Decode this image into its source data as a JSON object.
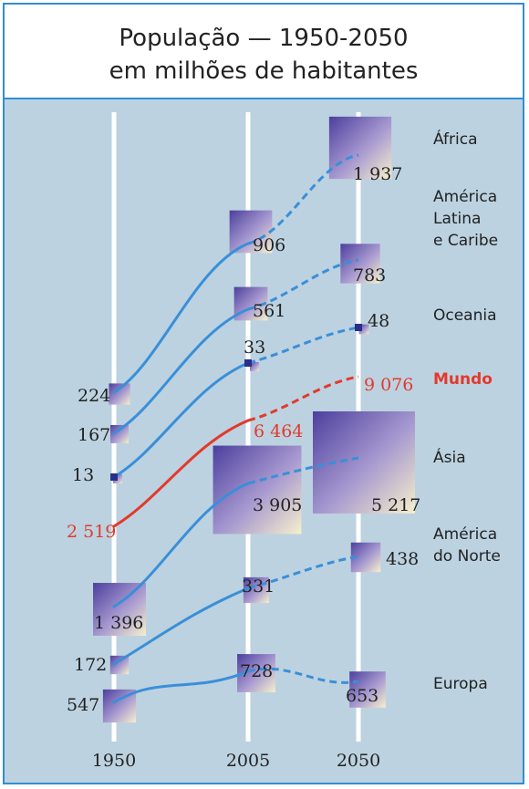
{
  "title_line1": "População — 1950-2050",
  "title_line2": "em milhões de habitantes",
  "colors": {
    "series": "#3a8fd8",
    "highlight": "#e3392b",
    "axis": "#ffffff",
    "background": "#bcd2e0",
    "border": "#2f8fd6"
  },
  "chart_data": {
    "type": "line",
    "title": "População — 1950-2050",
    "subtitle": "em milhões de habitantes",
    "x": [
      1950,
      2005,
      2050
    ],
    "x_tick_labels": [
      "1950",
      "2005",
      "2050"
    ],
    "y_scale": "none (each region drawn on its own band; values shown as labels and square sizes)",
    "series": [
      {
        "name": "África",
        "values": [
          224,
          906,
          1937
        ],
        "labels": [
          "224",
          "906",
          "1 937"
        ],
        "highlight": false
      },
      {
        "name": "América Latina e Caribe",
        "values": [
          167,
          561,
          783
        ],
        "labels": [
          "167",
          "561",
          "783"
        ],
        "highlight": false
      },
      {
        "name": "Oceania",
        "values": [
          13,
          33,
          48
        ],
        "labels": [
          "13",
          "33",
          "48"
        ],
        "highlight": false
      },
      {
        "name": "Mundo",
        "values": [
          2519,
          6464,
          9076
        ],
        "labels": [
          "2 519",
          "6 464",
          "9 076"
        ],
        "highlight": true
      },
      {
        "name": "Ásia",
        "values": [
          1396,
          3905,
          5217
        ],
        "labels": [
          "1 396",
          "3 905",
          "5 217"
        ],
        "highlight": false
      },
      {
        "name": "América do Norte",
        "values": [
          172,
          331,
          438
        ],
        "labels": [
          "172",
          "331",
          "438"
        ],
        "highlight": false
      },
      {
        "name": "Europa",
        "values": [
          547,
          728,
          653
        ],
        "labels": [
          "547",
          "728",
          "653"
        ],
        "highlight": false
      }
    ],
    "region_labels": [
      [
        "África"
      ],
      [
        "América",
        "Latina",
        "e Caribe"
      ],
      [
        "Oceania"
      ],
      [
        "Mundo"
      ],
      [
        "Ásia"
      ],
      [
        "América",
        "do Norte"
      ],
      [
        "Europa"
      ]
    ],
    "segment_style": [
      "solid",
      "dashed"
    ]
  }
}
